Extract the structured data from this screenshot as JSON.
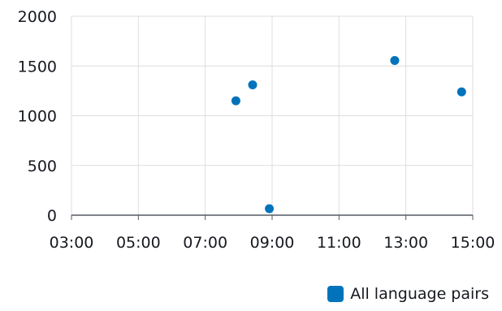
{
  "chart_data": {
    "type": "scatter",
    "title": "",
    "xlabel": "",
    "ylabel": "",
    "x_ticks": [
      "03:00",
      "05:00",
      "07:00",
      "09:00",
      "11:00",
      "13:00",
      "15:00"
    ],
    "y_ticks": [
      "0",
      "500",
      "1000",
      "1500",
      "2000"
    ],
    "xlim": [
      "03:00",
      "15:00"
    ],
    "ylim": [
      0,
      2000
    ],
    "grid": true,
    "legend_position": "bottom-right",
    "series": [
      {
        "name": "All language pairs",
        "color": "#0073bb",
        "points": [
          {
            "x": "07:55",
            "y": 1150
          },
          {
            "x": "08:25",
            "y": 1310
          },
          {
            "x": "08:55",
            "y": 65
          },
          {
            "x": "12:40",
            "y": 1555
          },
          {
            "x": "14:40",
            "y": 1240
          }
        ]
      }
    ]
  }
}
